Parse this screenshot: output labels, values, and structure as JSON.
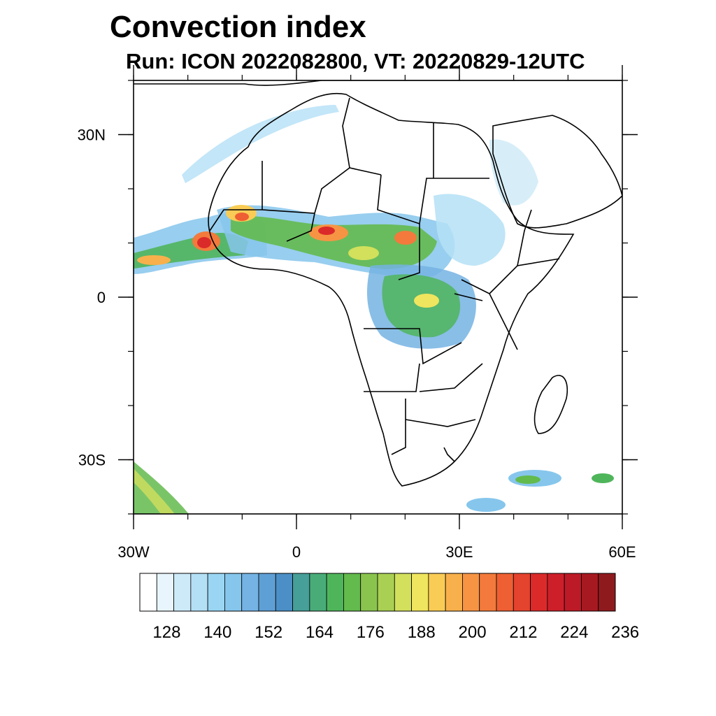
{
  "title": "Convection index",
  "subtitle": "Run: ICON 2022082800,  VT: 20220829-12UTC",
  "map": {
    "region": "Africa",
    "projection": "lat-lon",
    "lon_range": [
      -30,
      60
    ],
    "lat_range": [
      -40,
      40
    ],
    "x_ticks": [
      {
        "lon": -30,
        "label": "30W"
      },
      {
        "lon": 0,
        "label": "0"
      },
      {
        "lon": 30,
        "label": "30E"
      },
      {
        "lon": 60,
        "label": "60E"
      }
    ],
    "y_ticks": [
      {
        "lat": 30,
        "label": "30N"
      },
      {
        "lat": 0,
        "label": "0"
      },
      {
        "lat": -30,
        "label": "30S"
      }
    ],
    "minor_lon_step": 10,
    "minor_lat_step": 10,
    "coastline_color": "#000000",
    "ocean_color": "#ffffff"
  },
  "colorbar": {
    "colors": [
      "#ffffff",
      "#e8f5fc",
      "#cdeaf8",
      "#b4e0f6",
      "#9ad6f3",
      "#86c6ec",
      "#74b3e3",
      "#5e9fd6",
      "#4b8fc6",
      "#469f98",
      "#49ac78",
      "#4fb55b",
      "#63ba4d",
      "#8ac44e",
      "#a9d053",
      "#d2e05c",
      "#f0e55e",
      "#f9cc55",
      "#f8b04c",
      "#f69444",
      "#f37a3c",
      "#ee5f33",
      "#e4432d",
      "#db2a2a",
      "#cd1f2a",
      "#bc1a26",
      "#a71921",
      "#8f1a1e"
    ],
    "labels": [
      "128",
      "140",
      "152",
      "164",
      "176",
      "188",
      "200",
      "212",
      "224",
      "236"
    ],
    "label_after_box": [
      2,
      5,
      8,
      11,
      14,
      17,
      20,
      23,
      26,
      29
    ]
  }
}
